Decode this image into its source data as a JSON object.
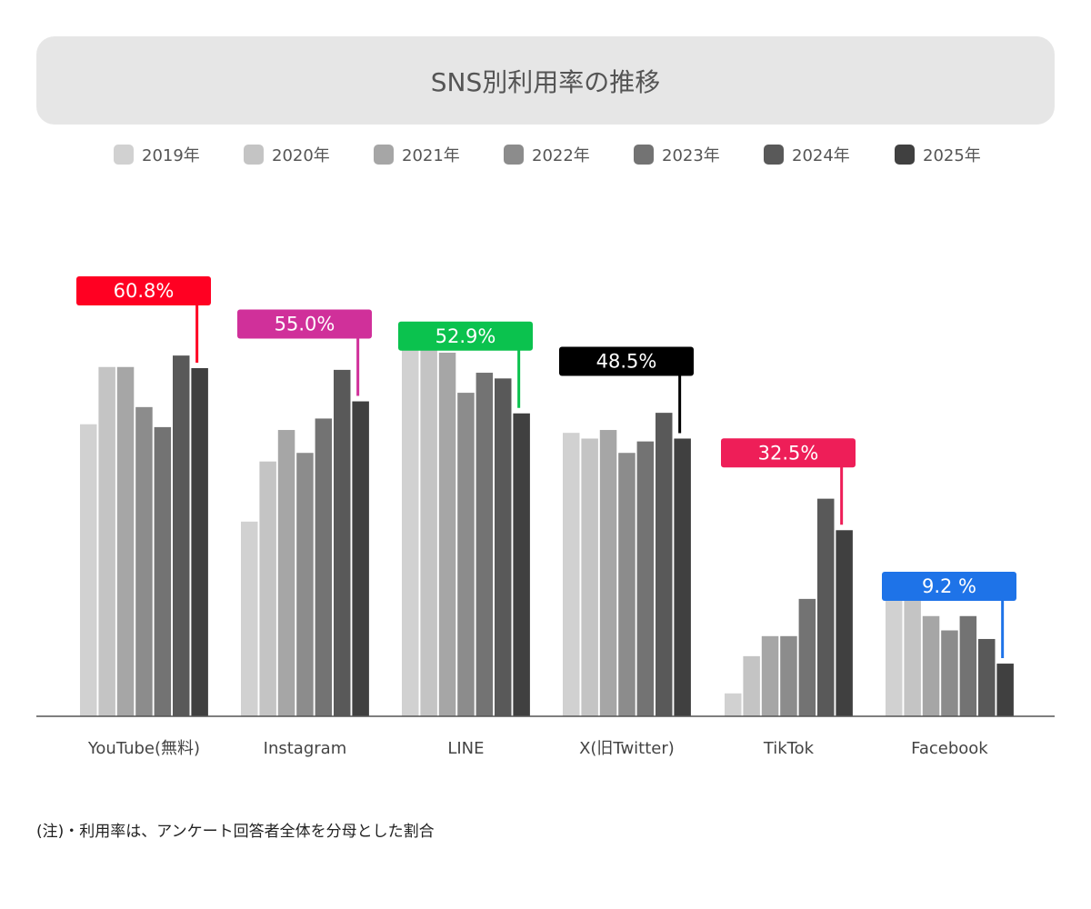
{
  "header": {
    "title": "SNS別利用率の推移"
  },
  "footnote": "(注)・利用率は、アンケート回答者全体を分母とした割合",
  "chart_data": {
    "type": "bar",
    "title": "SNS別利用率の推移",
    "xlabel": "",
    "ylabel": "",
    "ylim": [
      0,
      70
    ],
    "grid": false,
    "legend_position": "top",
    "categories": [
      "YouTube(無料)",
      "Instagram",
      "LINE",
      "X(旧Twitter)",
      "TikTok",
      "Facebook"
    ],
    "series": [
      {
        "name": "2019年",
        "color": "#d1d1d1",
        "values": [
          51.0,
          34.0,
          65.0,
          49.5,
          4.0,
          22.5
        ]
      },
      {
        "name": "2020年",
        "color": "#c4c4c4",
        "values": [
          61.0,
          44.5,
          65.5,
          48.5,
          10.5,
          24.0
        ]
      },
      {
        "name": "2021年",
        "color": "#a6a6a6",
        "values": [
          61.0,
          50.0,
          63.5,
          50.0,
          14.0,
          17.5
        ]
      },
      {
        "name": "2022年",
        "color": "#8c8c8c",
        "values": [
          54.0,
          46.0,
          56.5,
          46.0,
          14.0,
          15.0
        ]
      },
      {
        "name": "2023年",
        "color": "#737373",
        "values": [
          50.5,
          52.0,
          60.0,
          48.0,
          20.5,
          17.5
        ]
      },
      {
        "name": "2024年",
        "color": "#595959",
        "values": [
          63.0,
          60.5,
          59.0,
          53.0,
          38.0,
          13.5
        ]
      },
      {
        "name": "2025年",
        "color": "#404040",
        "values": [
          60.8,
          55.0,
          52.9,
          48.5,
          32.5,
          9.2
        ]
      }
    ],
    "callouts": [
      {
        "text": "60.8%",
        "color": "#ff0022"
      },
      {
        "text": "55.0%",
        "color": "#d0309a"
      },
      {
        "text": "52.9%",
        "color": "#0bc24e"
      },
      {
        "text": "48.5%",
        "color": "#000000"
      },
      {
        "text": "32.5%",
        "color": "#ee1e58"
      },
      {
        "text": "9.2 %",
        "color": "#1e73e8"
      }
    ]
  }
}
